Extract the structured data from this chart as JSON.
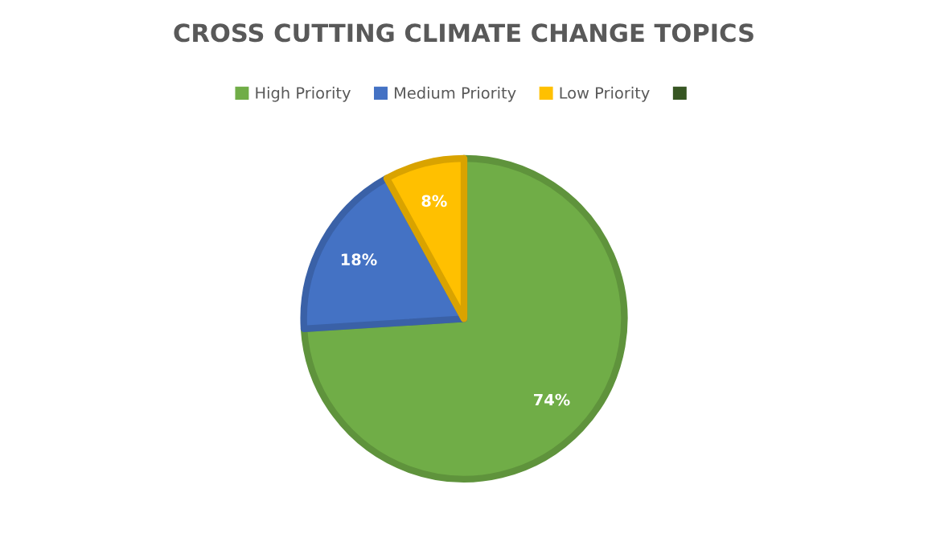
{
  "chart_data": {
    "type": "pie",
    "title": "CROSS CUTTING CLIMATE CHANGE TOPICS",
    "categories": [
      "High Priority",
      "Medium Priority",
      "Low Priority",
      null
    ],
    "values": [
      74,
      18,
      8,
      0
    ],
    "value_labels": [
      "74%",
      "18%",
      "8%",
      null
    ],
    "colors": [
      "#70ad47",
      "#4472c4",
      "#ffc000",
      "#375623"
    ],
    "legend": "top"
  }
}
